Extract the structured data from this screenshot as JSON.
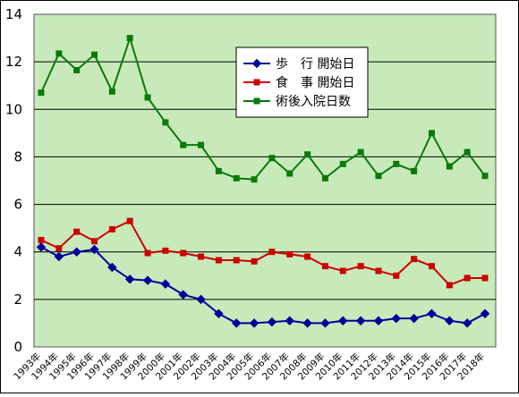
{
  "chart_data": {
    "type": "line",
    "categories": [
      "1993年",
      "1994年",
      "1995年",
      "1996年",
      "1997年",
      "1998年",
      "1999年",
      "2000年",
      "2001年",
      "2002年",
      "2003年",
      "2004年",
      "2005年",
      "2006年",
      "2007年",
      "2008年",
      "2009年",
      "2010年",
      "2011年",
      "2012年",
      "2013年",
      "2014年",
      "2015年",
      "2016年",
      "2017年",
      "2018年"
    ],
    "ylim": [
      0,
      14
    ],
    "yticks": [
      "0",
      "2",
      "4",
      "6",
      "8",
      "10",
      "12",
      "14"
    ],
    "grid": true,
    "legend_placement": "top-center",
    "plot_background": "#c8eaba",
    "series": [
      {
        "name": "歩　行 開始日",
        "color": "#000099",
        "marker": "diamond",
        "values": [
          4.2,
          3.8,
          4.0,
          4.1,
          3.35,
          2.85,
          2.8,
          2.65,
          2.2,
          2.0,
          1.4,
          1.0,
          1.0,
          1.05,
          1.1,
          1.0,
          1.0,
          1.1,
          1.1,
          1.1,
          1.2,
          1.2,
          1.4,
          1.1,
          1.0,
          1.4
        ]
      },
      {
        "name": "食　事 開始日",
        "color": "#cc0000",
        "marker": "square",
        "values": [
          4.5,
          4.15,
          4.85,
          4.45,
          4.95,
          5.3,
          3.95,
          4.05,
          3.95,
          3.8,
          3.65,
          3.65,
          3.6,
          4.0,
          3.9,
          3.8,
          3.4,
          3.2,
          3.4,
          3.2,
          3.0,
          3.7,
          3.4,
          2.6,
          2.9,
          2.9
        ]
      },
      {
        "name": "術後入院日数",
        "color": "#0a7a0a",
        "marker": "square",
        "values": [
          10.7,
          12.35,
          11.65,
          12.3,
          10.75,
          13.0,
          10.5,
          9.45,
          8.5,
          8.5,
          7.4,
          7.1,
          7.05,
          7.95,
          7.3,
          8.1,
          7.1,
          7.7,
          8.2,
          7.2,
          7.7,
          7.4,
          9.0,
          7.6,
          8.2,
          7.2
        ]
      }
    ]
  }
}
